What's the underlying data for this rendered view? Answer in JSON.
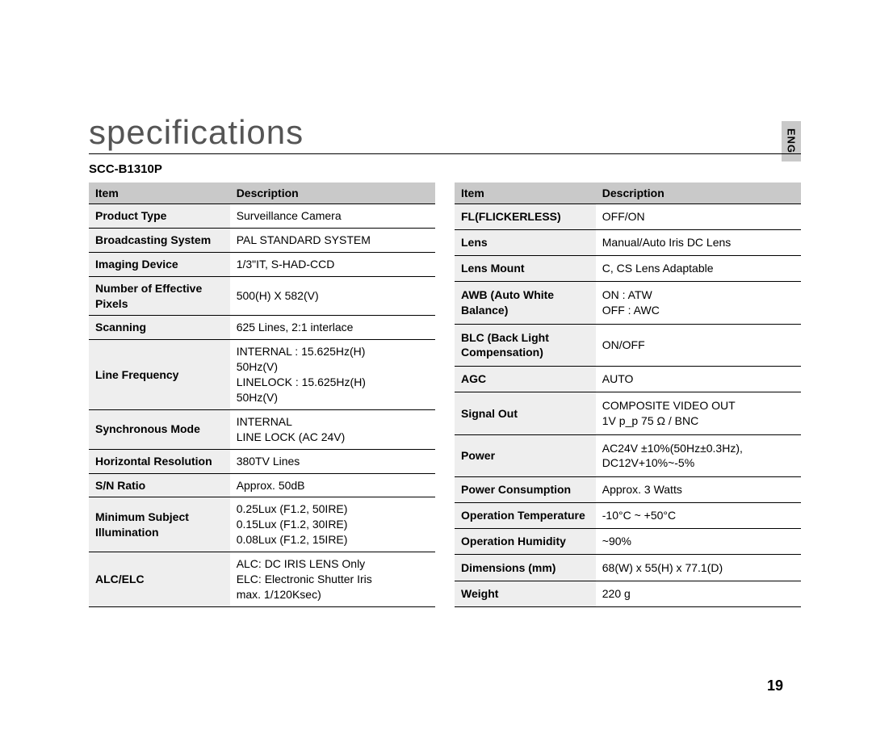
{
  "page": {
    "title": "specifications",
    "model": "SCC-B1310P",
    "lang_tab": "ENG",
    "page_number": "19"
  },
  "headers": {
    "item": "Item",
    "description": "Description"
  },
  "table_left": [
    {
      "item": "Product Type",
      "desc": "Surveillance Camera"
    },
    {
      "item": "Broadcasting System",
      "desc": "PAL STANDARD SYSTEM"
    },
    {
      "item": "Imaging Device",
      "desc": "1/3\"IT, S-HAD-CCD"
    },
    {
      "item": "Number of Effective Pixels",
      "desc": "500(H) X 582(V)"
    },
    {
      "item": "Scanning",
      "desc": "625 Lines, 2:1 interlace"
    },
    {
      "item": "Line Frequency",
      "desc": "INTERNAL : 15.625Hz(H)\n                       50Hz(V)\nLINELOCK : 15.625Hz(H)\n                       50Hz(V)"
    },
    {
      "item": "Synchronous Mode",
      "desc": "INTERNAL\nLINE LOCK (AC 24V)"
    },
    {
      "item": "Horizontal Resolution",
      "desc": "380TV Lines"
    },
    {
      "item": "S/N Ratio",
      "desc": "Approx. 50dB"
    },
    {
      "item": "Minimum Subject Illumination",
      "desc": "0.25Lux (F1.2, 50IRE)\n0.15Lux (F1.2, 30IRE)\n0.08Lux (F1.2, 15IRE)"
    },
    {
      "item": "ALC/ELC",
      "desc": "ALC: DC IRIS LENS Only\nELC: Electronic Shutter Iris\n         max. 1/120Ksec)"
    }
  ],
  "table_right": [
    {
      "item": "FL(FLICKERLESS)",
      "desc": "OFF/ON"
    },
    {
      "item": "Lens",
      "desc": "Manual/Auto Iris DC Lens"
    },
    {
      "item": "Lens Mount",
      "desc": "C, CS Lens Adaptable"
    },
    {
      "item": "AWB (Auto White Balance)",
      "desc": "ON  : ATW\nOFF : AWC"
    },
    {
      "item": "BLC (Back Light Compensation)",
      "desc": "ON/OFF"
    },
    {
      "item": "AGC",
      "desc": "AUTO"
    },
    {
      "item": "Signal Out",
      "desc": "COMPOSITE VIDEO OUT\n1V p_p 75 Ω / BNC"
    },
    {
      "item": "Power",
      "desc": "AC24V ±10%(50Hz±0.3Hz),\nDC12V+10%~-5%"
    },
    {
      "item": "Power Consumption",
      "desc": "Approx. 3 Watts"
    },
    {
      "item": "Operation Temperature",
      "desc": "-10°C ~ +50°C"
    },
    {
      "item": "Operation Humidity",
      "desc": "~90%"
    },
    {
      "item": "Dimensions (mm)",
      "desc": "68(W) x 55(H) x 77.1(D)"
    },
    {
      "item": "Weight",
      "desc": "220 g"
    }
  ]
}
